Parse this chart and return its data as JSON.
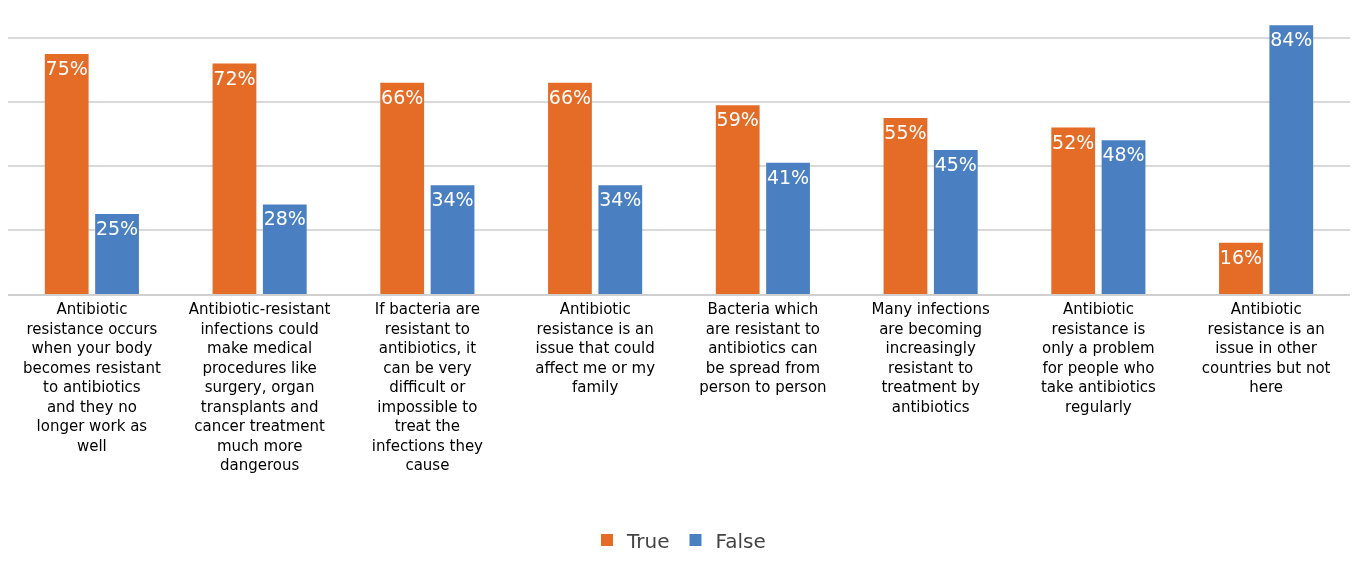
{
  "chart_data": {
    "type": "bar",
    "categories": [
      "Antibiotic resistance occurs when your body becomes resistant to antibiotics and they no longer work as well",
      "Antibiotic-resistant infections could make medical procedures like surgery, organ transplants and cancer treatment much more dangerous",
      "If bacteria are resistant to antibiotics, it can be very difficult or impossible to treat the infections they cause",
      "Antibiotic resistance is an issue that could affect me or my family",
      "Bacteria which are resistant to antibiotics can be spread from person to person",
      "Many infections are becoming increasingly resistant to treatment by antibiotics",
      "Antibiotic resistance is only a problem for people who take antibiotics regularly",
      "Antibiotic resistance is an issue in other countries but not here"
    ],
    "series": [
      {
        "name": "True",
        "color": "#e46c26",
        "values": [
          75,
          72,
          66,
          66,
          59,
          55,
          52,
          16
        ],
        "value_labels": [
          "75%",
          "72%",
          "66%",
          "66%",
          "59%",
          "55%",
          "52%",
          "16%"
        ]
      },
      {
        "name": "False",
        "color": "#4a80c2",
        "values": [
          25,
          28,
          34,
          34,
          41,
          45,
          48,
          84
        ],
        "value_labels": [
          "25%",
          "28%",
          "34%",
          "34%",
          "41%",
          "45%",
          "48%",
          "84%"
        ]
      }
    ],
    "grid": "y",
    "legend": "bottom",
    "tick_labels": "x"
  }
}
